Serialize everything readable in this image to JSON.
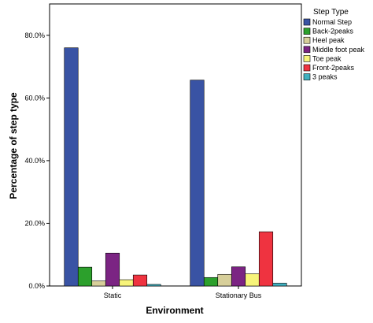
{
  "chart_data": {
    "type": "bar",
    "xlabel": "Environment",
    "ylabel": "Percentage of step type",
    "categories": [
      "Static",
      "Stationary Bus"
    ],
    "ylim": [
      0,
      0.9
    ],
    "yticks": [
      0,
      0.2,
      0.4,
      0.6,
      0.8
    ],
    "ytick_labels": [
      "0.0%",
      "20.0%",
      "40.0%",
      "60.0%",
      "80.0%"
    ],
    "grid": false,
    "legend": {
      "title": "Step Type",
      "placement": "right"
    },
    "series": [
      {
        "name": "Normal Step",
        "color": "#3953a4",
        "values": [
          0.76,
          0.657
        ]
      },
      {
        "name": "Back-2peaks",
        "color": "#2ca02c",
        "values": [
          0.06,
          0.027
        ]
      },
      {
        "name": "Heel peak",
        "color": "#d7cf9a",
        "values": [
          0.016,
          0.037
        ]
      },
      {
        "name": "Middle foot peak",
        "color": "#7b2483",
        "values": [
          0.105,
          0.061
        ]
      },
      {
        "name": "Toe peak",
        "color": "#f7f47a",
        "values": [
          0.02,
          0.039
        ]
      },
      {
        "name": "Front-2peaks",
        "color": "#ef3340",
        "values": [
          0.035,
          0.173
        ]
      },
      {
        "name": "3 peaks",
        "color": "#3fb0c0",
        "values": [
          0.005,
          0.009
        ]
      }
    ]
  }
}
